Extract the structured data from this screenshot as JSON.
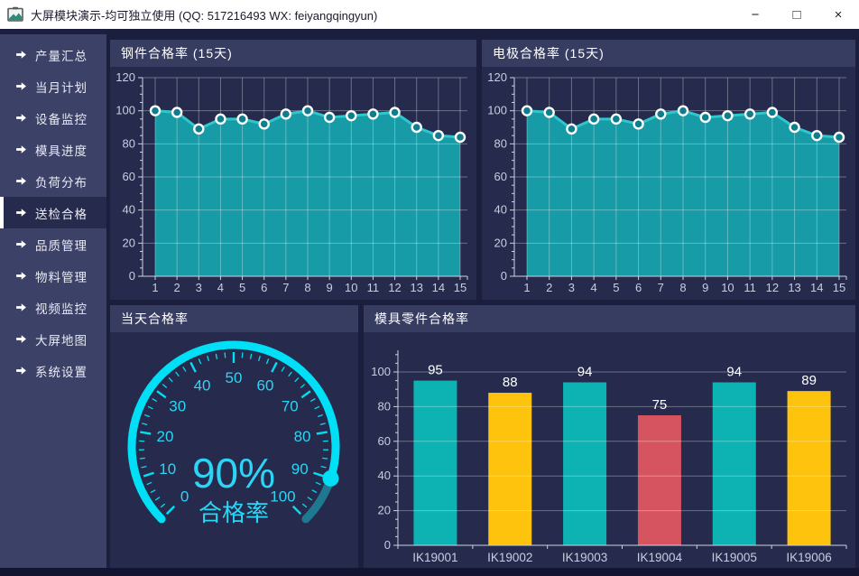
{
  "window": {
    "title": "大屏模块演示-均可独立使用 (QQ: 517216493  WX: feiyangqingyun)",
    "minimize": "−",
    "maximize": "□",
    "close": "×"
  },
  "sidebar": {
    "items": [
      {
        "label": "产量汇总",
        "active": false
      },
      {
        "label": "当月计划",
        "active": false
      },
      {
        "label": "设备监控",
        "active": false
      },
      {
        "label": "模具进度",
        "active": false
      },
      {
        "label": "负荷分布",
        "active": false
      },
      {
        "label": "送检合格",
        "active": true
      },
      {
        "label": "品质管理",
        "active": false
      },
      {
        "label": "物料管理",
        "active": false
      },
      {
        "label": "视频监控",
        "active": false
      },
      {
        "label": "大屏地图",
        "active": false
      },
      {
        "label": "系统设置",
        "active": false
      }
    ]
  },
  "chart_data": [
    {
      "id": "steel",
      "type": "area",
      "title": "钢件合格率 (15天)",
      "x": [
        "1",
        "2",
        "3",
        "4",
        "5",
        "6",
        "7",
        "8",
        "9",
        "10",
        "11",
        "12",
        "13",
        "14",
        "15"
      ],
      "values": [
        100,
        99,
        89,
        95,
        95,
        92,
        98,
        100,
        96,
        97,
        98,
        99,
        90,
        85,
        84
      ],
      "ylim": [
        0,
        120
      ],
      "ytick": 20,
      "grid": "on",
      "legend": "none"
    },
    {
      "id": "electrode",
      "type": "area",
      "title": "电极合格率 (15天)",
      "x": [
        "1",
        "2",
        "3",
        "4",
        "5",
        "6",
        "7",
        "8",
        "9",
        "10",
        "11",
        "12",
        "13",
        "14",
        "15"
      ],
      "values": [
        100,
        99,
        89,
        95,
        95,
        92,
        98,
        100,
        96,
        97,
        98,
        99,
        90,
        85,
        84
      ],
      "ylim": [
        0,
        120
      ],
      "ytick": 20,
      "grid": "on",
      "legend": "none"
    },
    {
      "id": "today",
      "type": "gauge",
      "title": "当天合格率",
      "value": 90,
      "value_text": "90%",
      "label": "合格率",
      "min": 0,
      "max": 100,
      "tick_labels": [
        0,
        10,
        20,
        30,
        40,
        50,
        60,
        70,
        80,
        90,
        100
      ]
    },
    {
      "id": "mold",
      "type": "bar",
      "title": "模具零件合格率",
      "categories": [
        "IK19001",
        "IK19002",
        "IK19003",
        "IK19004",
        "IK19005",
        "IK19006"
      ],
      "values": [
        95,
        88,
        94,
        75,
        94,
        89
      ],
      "bar_colors": [
        "#0db3b3",
        "#fdc30d",
        "#0db3b3",
        "#d6545f",
        "#0db3b3",
        "#fdc30d"
      ],
      "ylim": [
        0,
        100
      ],
      "ytick": 20,
      "grid": "on"
    }
  ],
  "colors": {
    "titlebar_bg": "#ffffff",
    "titlebar_text": "#1a1a2e",
    "app_bg": "#1b1e3c",
    "sidebar_bg": "#3c4168",
    "sidebar_active_bg": "#262a4c",
    "panel_header_bg": "#373c61",
    "panel_body_bg": "#262b4d",
    "area_fill": "#179ba6",
    "line": "#2ec8cc",
    "marker_center": "#0e7e8e",
    "grid_line": "rgba(255,255,255,0.32)",
    "axis_line": "#cdd1e2",
    "axis_text": "#c9cde0",
    "gauge_main": "#00dff6",
    "gauge_rest": "#1d7890",
    "gauge_text": "#2bd5f5",
    "value_label": "#ffffff"
  }
}
